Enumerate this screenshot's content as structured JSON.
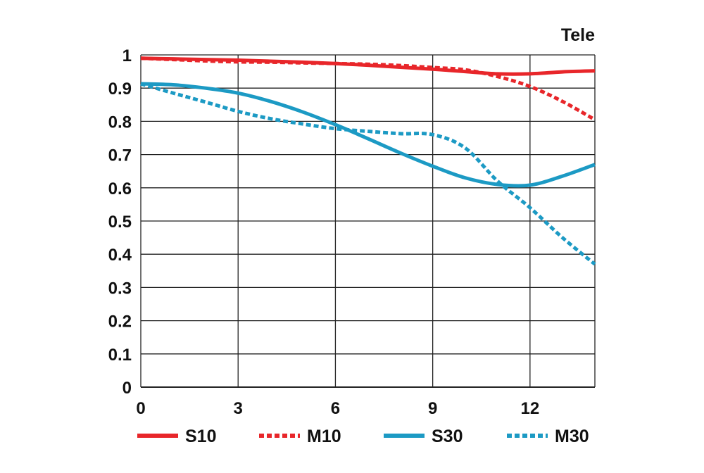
{
  "chart_data": {
    "type": "line",
    "title": "Tele",
    "xlabel": "",
    "ylabel": "",
    "xlim": [
      0,
      14
    ],
    "ylim": [
      0,
      1
    ],
    "x_ticks": [
      "0",
      "3",
      "6",
      "9",
      "12"
    ],
    "x_tick_values": [
      0,
      3,
      6,
      9,
      12
    ],
    "y_ticks": [
      "0",
      "0.1",
      "0.2",
      "0.3",
      "0.4",
      "0.5",
      "0.6",
      "0.7",
      "0.8",
      "0.9",
      "1"
    ],
    "y_tick_values": [
      0,
      0.1,
      0.2,
      0.3,
      0.4,
      0.5,
      0.6,
      0.7,
      0.8,
      0.9,
      1.0
    ],
    "grid": true,
    "legend_position": "bottom",
    "series": [
      {
        "name": "S10",
        "color": "#e8262a",
        "dashed": false,
        "x": [
          0,
          1,
          2,
          3,
          4,
          5,
          6,
          7,
          8,
          9,
          10,
          11,
          12,
          13,
          14
        ],
        "y": [
          0.99,
          0.988,
          0.986,
          0.984,
          0.981,
          0.978,
          0.974,
          0.969,
          0.963,
          0.957,
          0.95,
          0.943,
          0.943,
          0.949,
          0.952
        ]
      },
      {
        "name": "M10",
        "color": "#e8262a",
        "dashed": true,
        "x": [
          0,
          1,
          2,
          3,
          4,
          5,
          6,
          7,
          8,
          9,
          10,
          11,
          12,
          13,
          14
        ],
        "y": [
          0.99,
          0.986,
          0.982,
          0.979,
          0.978,
          0.976,
          0.974,
          0.972,
          0.968,
          0.962,
          0.955,
          0.935,
          0.905,
          0.86,
          0.805
        ]
      },
      {
        "name": "S30",
        "color": "#1c9ac4",
        "dashed": false,
        "x": [
          0,
          1,
          2,
          3,
          4,
          5,
          6,
          7,
          8,
          9,
          10,
          11,
          12,
          13,
          14
        ],
        "y": [
          0.913,
          0.91,
          0.9,
          0.885,
          0.86,
          0.828,
          0.79,
          0.748,
          0.705,
          0.665,
          0.63,
          0.61,
          0.608,
          0.635,
          0.67
        ]
      },
      {
        "name": "M30",
        "color": "#1c9ac4",
        "dashed": true,
        "x": [
          0,
          1,
          2,
          3,
          4,
          5,
          6,
          7,
          8,
          9,
          10,
          11,
          12,
          13,
          14
        ],
        "y": [
          0.913,
          0.885,
          0.858,
          0.83,
          0.808,
          0.792,
          0.778,
          0.77,
          0.763,
          0.76,
          0.72,
          0.62,
          0.54,
          0.45,
          0.37
        ]
      }
    ]
  }
}
